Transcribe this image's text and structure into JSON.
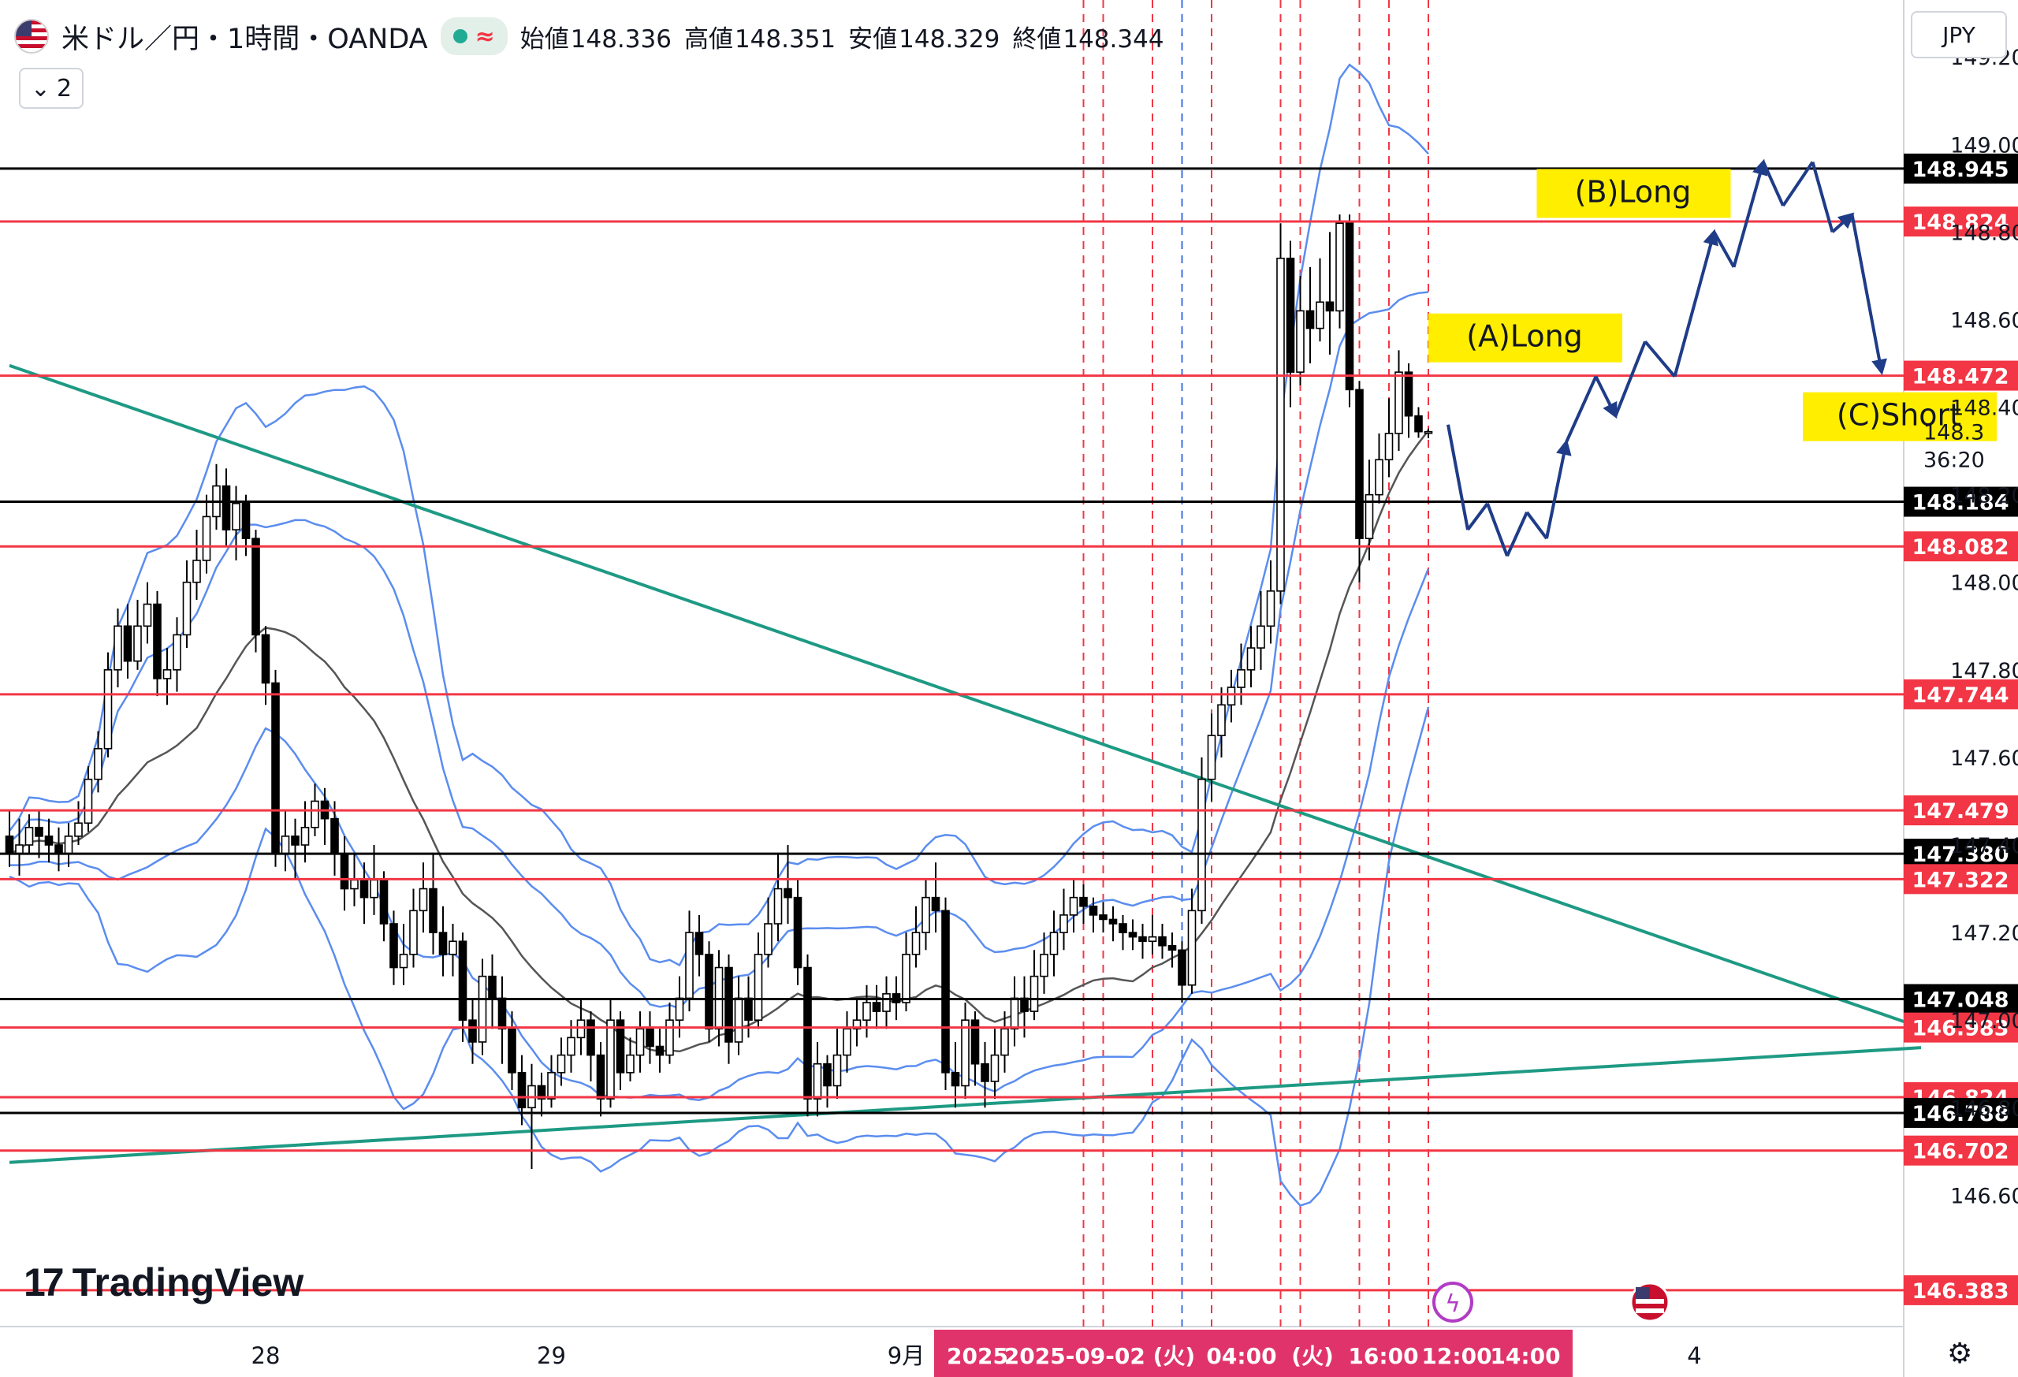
{
  "header": {
    "symbol": "米ドル／円・1時間・OANDA",
    "ohlc": [
      {
        "label": "始値",
        "value": "148.336"
      },
      {
        "label": "高値",
        "value": "148.351"
      },
      {
        "label": "安値",
        "value": "148.329"
      },
      {
        "label": "終値",
        "value": "148.344"
      }
    ],
    "indicator_count": "2",
    "currency": "JPY",
    "icons": [
      "us-flag-icon",
      "market-open-dot-icon",
      "wave-icon",
      "chevron-down-icon",
      "settings-gear-icon",
      "flash-event-icon",
      "us-flag-event-icon"
    ]
  },
  "branding": {
    "logo_text": "TradingView",
    "logo_mark": "17"
  },
  "countdown": "36:20",
  "colors": {
    "red_level": "#f23645",
    "black_level": "#000000",
    "trendline": "#1e9a84",
    "bollinger": "#5b8def",
    "sma": "#555555",
    "projection": "#1f3c88",
    "label_yellow": "#ffee00",
    "time_highlight": "#e0336c"
  },
  "chart_data": {
    "type": "candlestick",
    "title": "米ドル／円・1時間・OANDA",
    "ylim": [
      146.3,
      149.33
    ],
    "y_ticks": [
      "149.200",
      "149.000",
      "148.800",
      "148.600",
      "148.400",
      "148.200",
      "148.000",
      "147.800",
      "147.600",
      "147.400",
      "147.200",
      "147.000",
      "146.800",
      "146.600"
    ],
    "x_ticks": [
      {
        "label": "28",
        "index": 26
      },
      {
        "label": "29",
        "index": 55
      },
      {
        "label": "9月",
        "index": 91
      },
      {
        "label": "4",
        "index": 171
      }
    ],
    "time_highlight_labels": [
      "2025",
      "2025-09-02 (火)",
      "04:00",
      "(火)",
      "16:00",
      "12:00",
      "14:00"
    ],
    "horizontal_levels": [
      {
        "price": 148.945,
        "label": "148.945",
        "kind": "black"
      },
      {
        "price": 148.824,
        "label": "148.824",
        "kind": "red"
      },
      {
        "price": 148.472,
        "label": "148.472",
        "kind": "red"
      },
      {
        "price": 148.184,
        "label": "148.184",
        "kind": "black"
      },
      {
        "price": 148.082,
        "label": "148.082",
        "kind": "red"
      },
      {
        "price": 147.744,
        "label": "147.744",
        "kind": "red"
      },
      {
        "price": 147.479,
        "label": "147.479",
        "kind": "red"
      },
      {
        "price": 147.38,
        "label": "147.380",
        "kind": "black"
      },
      {
        "price": 147.322,
        "label": "147.322",
        "kind": "red"
      },
      {
        "price": 147.048,
        "label": "147.048",
        "kind": "black"
      },
      {
        "price": 146.983,
        "label": "146.983",
        "kind": "red"
      },
      {
        "price": 146.824,
        "label": "146.824",
        "kind": "red"
      },
      {
        "price": 146.788,
        "label": "146.788",
        "kind": "black"
      },
      {
        "price": 146.702,
        "label": "146.702",
        "kind": "red"
      },
      {
        "price": 146.383,
        "label": "146.383",
        "kind": "red"
      }
    ],
    "trendlines": [
      {
        "from": {
          "index": 0,
          "price": 148.495
        },
        "to": {
          "index": 194,
          "price": 146.983
        }
      },
      {
        "from": {
          "index": 0,
          "price": 146.675
        },
        "to": {
          "index": 194,
          "price": 146.937
        }
      }
    ],
    "vertical_markers": [
      {
        "index": 109,
        "color": "red"
      },
      {
        "index": 111,
        "color": "red"
      },
      {
        "index": 116,
        "color": "red"
      },
      {
        "index": 119,
        "color": "blue"
      },
      {
        "index": 122,
        "color": "red"
      },
      {
        "index": 129,
        "color": "red"
      },
      {
        "index": 131,
        "color": "red"
      },
      {
        "index": 137,
        "color": "red"
      },
      {
        "index": 140,
        "color": "red"
      },
      {
        "index": 144,
        "color": "red"
      }
    ],
    "candles": [
      [
        147.42,
        147.38,
        147.48,
        147.35
      ],
      [
        147.38,
        147.4,
        147.46,
        147.33
      ],
      [
        147.4,
        147.44,
        147.47,
        147.38
      ],
      [
        147.44,
        147.42,
        147.48,
        147.37
      ],
      [
        147.42,
        147.4,
        147.46,
        147.36
      ],
      [
        147.4,
        147.38,
        147.44,
        147.34
      ],
      [
        147.38,
        147.42,
        147.45,
        147.35
      ],
      [
        147.42,
        147.45,
        147.5,
        147.4
      ],
      [
        147.45,
        147.55,
        147.58,
        147.43
      ],
      [
        147.55,
        147.62,
        147.66,
        147.52
      ],
      [
        147.62,
        147.8,
        147.84,
        147.6
      ],
      [
        147.8,
        147.9,
        147.94,
        147.76
      ],
      [
        147.9,
        147.82,
        147.95,
        147.78
      ],
      [
        147.82,
        147.9,
        147.96,
        147.8
      ],
      [
        147.9,
        147.95,
        148.0,
        147.86
      ],
      [
        147.95,
        147.78,
        147.98,
        147.74
      ],
      [
        147.78,
        147.8,
        147.85,
        147.72
      ],
      [
        147.8,
        147.88,
        147.92,
        147.75
      ],
      [
        147.88,
        148.0,
        148.05,
        147.85
      ],
      [
        148.0,
        148.05,
        148.12,
        147.96
      ],
      [
        148.05,
        148.15,
        148.2,
        148.02
      ],
      [
        148.15,
        148.22,
        148.27,
        148.12
      ],
      [
        148.22,
        148.12,
        148.26,
        148.08
      ],
      [
        148.12,
        148.18,
        148.22,
        148.05
      ],
      [
        148.18,
        148.1,
        148.2,
        148.06
      ],
      [
        148.1,
        147.88,
        148.12,
        147.84
      ],
      [
        147.88,
        147.77,
        147.9,
        147.72
      ],
      [
        147.77,
        147.38,
        147.8,
        147.35
      ],
      [
        147.38,
        147.42,
        147.48,
        147.34
      ],
      [
        147.42,
        147.4,
        147.46,
        147.32
      ],
      [
        147.4,
        147.44,
        147.5,
        147.36
      ],
      [
        147.44,
        147.5,
        147.54,
        147.42
      ],
      [
        147.5,
        147.46,
        147.53,
        147.4
      ],
      [
        147.46,
        147.38,
        147.5,
        147.33
      ],
      [
        147.38,
        147.3,
        147.42,
        147.25
      ],
      [
        147.3,
        147.32,
        147.38,
        147.26
      ],
      [
        147.32,
        147.28,
        147.36,
        147.22
      ],
      [
        147.28,
        147.32,
        147.4,
        147.24
      ],
      [
        147.32,
        147.22,
        147.34,
        147.18
      ],
      [
        147.22,
        147.12,
        147.25,
        147.08
      ],
      [
        147.12,
        147.15,
        147.22,
        147.08
      ],
      [
        147.15,
        147.25,
        147.3,
        147.12
      ],
      [
        147.25,
        147.3,
        147.36,
        147.2
      ],
      [
        147.3,
        147.2,
        147.38,
        147.15
      ],
      [
        147.2,
        147.15,
        147.26,
        147.1
      ],
      [
        147.15,
        147.18,
        147.22,
        147.1
      ],
      [
        147.18,
        147.0,
        147.2,
        146.95
      ],
      [
        147.0,
        146.95,
        147.05,
        146.9
      ],
      [
        146.95,
        147.1,
        147.14,
        146.92
      ],
      [
        147.1,
        147.05,
        147.15,
        146.98
      ],
      [
        147.05,
        146.98,
        147.1,
        146.9
      ],
      [
        146.98,
        146.88,
        147.02,
        146.84
      ],
      [
        146.88,
        146.8,
        146.92,
        146.76
      ],
      [
        146.8,
        146.85,
        146.9,
        146.66
      ],
      [
        146.85,
        146.82,
        146.88,
        146.78
      ],
      [
        146.82,
        146.88,
        146.92,
        146.8
      ],
      [
        146.88,
        146.92,
        146.96,
        146.85
      ],
      [
        146.92,
        146.96,
        147.0,
        146.88
      ],
      [
        146.96,
        147.0,
        147.05,
        146.92
      ],
      [
        147.0,
        146.92,
        147.02,
        146.86
      ],
      [
        146.92,
        146.82,
        146.95,
        146.78
      ],
      [
        146.82,
        147.0,
        147.05,
        146.8
      ],
      [
        147.0,
        146.88,
        147.02,
        146.84
      ],
      [
        146.88,
        146.92,
        146.96,
        146.86
      ],
      [
        146.92,
        146.98,
        147.02,
        146.88
      ],
      [
        146.98,
        146.94,
        147.02,
        146.9
      ],
      [
        146.94,
        146.92,
        146.98,
        146.88
      ],
      [
        146.92,
        147.0,
        147.04,
        146.9
      ],
      [
        147.0,
        147.05,
        147.1,
        146.96
      ],
      [
        147.05,
        147.2,
        147.25,
        147.02
      ],
      [
        147.2,
        147.15,
        147.24,
        147.1
      ],
      [
        147.15,
        146.98,
        147.18,
        146.95
      ],
      [
        146.98,
        147.12,
        147.16,
        146.94
      ],
      [
        147.12,
        146.95,
        147.15,
        146.9
      ],
      [
        146.95,
        147.05,
        147.1,
        146.92
      ],
      [
        147.05,
        147.0,
        147.1,
        146.96
      ],
      [
        147.0,
        147.15,
        147.2,
        146.98
      ],
      [
        147.15,
        147.22,
        147.28,
        147.12
      ],
      [
        147.22,
        147.3,
        147.38,
        147.18
      ],
      [
        147.3,
        147.28,
        147.4,
        147.22
      ],
      [
        147.28,
        147.12,
        147.32,
        147.08
      ],
      [
        147.12,
        146.82,
        147.15,
        146.78
      ],
      [
        146.82,
        146.9,
        146.95,
        146.78
      ],
      [
        146.9,
        146.85,
        146.92,
        146.8
      ],
      [
        146.85,
        146.92,
        146.98,
        146.82
      ],
      [
        146.92,
        146.98,
        147.02,
        146.88
      ],
      [
        146.98,
        147.0,
        147.05,
        146.94
      ],
      [
        147.0,
        147.04,
        147.08,
        146.96
      ],
      [
        147.04,
        147.02,
        147.08,
        146.98
      ],
      [
        147.02,
        147.06,
        147.1,
        146.98
      ],
      [
        147.06,
        147.04,
        147.1,
        147.0
      ],
      [
        147.04,
        147.15,
        147.2,
        147.02
      ],
      [
        147.15,
        147.2,
        147.26,
        147.12
      ],
      [
        147.2,
        147.28,
        147.32,
        147.16
      ],
      [
        147.28,
        147.25,
        147.36,
        147.2
      ],
      [
        147.25,
        146.88,
        147.28,
        146.84
      ],
      [
        146.88,
        146.85,
        146.95,
        146.8
      ],
      [
        146.85,
        147.0,
        147.04,
        146.82
      ],
      [
        147.0,
        146.9,
        147.02,
        146.85
      ],
      [
        146.9,
        146.86,
        146.95,
        146.8
      ],
      [
        146.86,
        146.92,
        146.98,
        146.82
      ],
      [
        146.92,
        146.98,
        147.02,
        146.88
      ],
      [
        146.98,
        147.05,
        147.1,
        146.94
      ],
      [
        147.05,
        147.02,
        147.1,
        146.96
      ],
      [
        147.02,
        147.1,
        147.16,
        147.0
      ],
      [
        147.1,
        147.15,
        147.2,
        147.06
      ],
      [
        147.15,
        147.2,
        147.25,
        147.1
      ],
      [
        147.2,
        147.24,
        147.3,
        147.16
      ],
      [
        147.24,
        147.28,
        147.32,
        147.2
      ],
      [
        147.28,
        147.26,
        147.31,
        147.22
      ],
      [
        147.26,
        147.24,
        147.28,
        147.2
      ],
      [
        147.24,
        147.23,
        147.27,
        147.2
      ],
      [
        147.23,
        147.22,
        147.26,
        147.18
      ],
      [
        147.22,
        147.2,
        147.24,
        147.16
      ],
      [
        147.2,
        147.19,
        147.23,
        147.16
      ],
      [
        147.19,
        147.18,
        147.22,
        147.14
      ],
      [
        147.18,
        147.19,
        147.24,
        147.15
      ],
      [
        147.19,
        147.17,
        147.22,
        147.14
      ],
      [
        147.17,
        147.16,
        147.2,
        147.12
      ],
      [
        147.16,
        147.08,
        147.18,
        147.04
      ],
      [
        147.08,
        147.25,
        147.3,
        147.06
      ],
      [
        147.25,
        147.55,
        147.6,
        147.22
      ],
      [
        147.55,
        147.65,
        147.7,
        147.5
      ],
      [
        147.65,
        147.72,
        147.76,
        147.6
      ],
      [
        147.72,
        147.76,
        147.8,
        147.68
      ],
      [
        147.76,
        147.8,
        147.86,
        147.72
      ],
      [
        147.8,
        147.85,
        147.9,
        147.76
      ],
      [
        147.85,
        147.9,
        147.98,
        147.8
      ],
      [
        147.9,
        147.98,
        148.05,
        147.86
      ],
      [
        147.98,
        148.74,
        148.82,
        147.95
      ],
      [
        148.74,
        148.48,
        148.78,
        148.4
      ],
      [
        148.48,
        148.62,
        148.7,
        148.45
      ],
      [
        148.62,
        148.58,
        148.72,
        148.5
      ],
      [
        148.58,
        148.64,
        148.74,
        148.55
      ],
      [
        148.64,
        148.62,
        148.8,
        148.52
      ],
      [
        148.62,
        148.82,
        148.84,
        148.58
      ],
      [
        148.82,
        148.44,
        148.84,
        148.4
      ],
      [
        148.44,
        148.1,
        148.46,
        148.0
      ],
      [
        148.1,
        148.2,
        148.28,
        148.05
      ],
      [
        148.2,
        148.28,
        148.34,
        148.18
      ],
      [
        148.28,
        148.34,
        148.42,
        148.24
      ],
      [
        148.34,
        148.48,
        148.53,
        148.3
      ],
      [
        148.48,
        148.38,
        148.5,
        148.33
      ],
      [
        148.38,
        148.344,
        148.4,
        148.33
      ],
      [
        148.344,
        148.344,
        148.351,
        148.329
      ]
    ],
    "projection_path": [
      {
        "index": 146,
        "price": 148.36
      },
      {
        "index": 148,
        "price": 148.12
      },
      {
        "index": 150,
        "price": 148.18
      },
      {
        "index": 152,
        "price": 148.06
      },
      {
        "index": 154,
        "price": 148.16
      },
      {
        "index": 156,
        "price": 148.1
      },
      {
        "index": 158,
        "price": 148.32
      },
      {
        "index": 161,
        "price": 148.47
      },
      {
        "index": 163,
        "price": 148.38
      },
      {
        "index": 166,
        "price": 148.55
      },
      {
        "index": 169,
        "price": 148.47
      },
      {
        "index": 173,
        "price": 148.8
      },
      {
        "index": 175,
        "price": 148.72
      },
      {
        "index": 178,
        "price": 148.96
      },
      {
        "index": 180,
        "price": 148.86
      },
      {
        "index": 183,
        "price": 148.96
      },
      {
        "index": 185,
        "price": 148.8
      },
      {
        "index": 187,
        "price": 148.84
      },
      {
        "index": 190,
        "price": 148.48
      }
    ],
    "annotations": [
      {
        "text": "(A)Long",
        "index": 144,
        "price": 148.56
      },
      {
        "text": "(B)Long",
        "index": 155,
        "price": 148.89
      },
      {
        "text": "(C)Short",
        "index": 182,
        "price": 148.38
      }
    ],
    "price_label_overlay": "148.3",
    "bb_band_width": 0.26
  }
}
